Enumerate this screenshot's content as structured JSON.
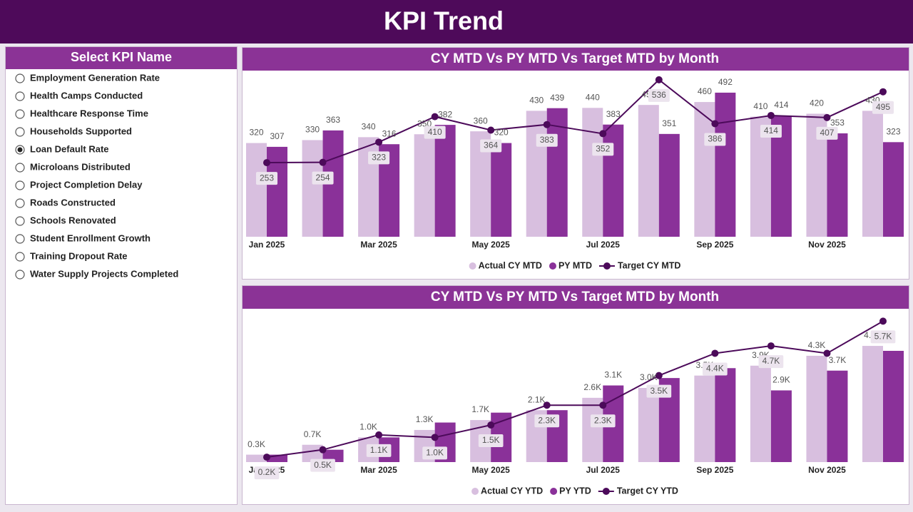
{
  "header": {
    "title": "KPI Trend"
  },
  "slicer": {
    "title": "Select KPI Name",
    "items": [
      "Employment Generation Rate",
      "Health Camps Conducted",
      "Healthcare Response Time",
      "Households Supported",
      "Loan Default Rate",
      "Microloans Distributed",
      "Project Completion Delay",
      "Roads Constructed",
      "Schools Renovated",
      "Student Enrollment Growth",
      "Training Dropout Rate",
      "Water Supply Projects Completed"
    ],
    "selected_index": 4
  },
  "chart_data": [
    {
      "type": "bar",
      "title": "CY MTD Vs PY MTD Vs Target MTD by Month",
      "categories": [
        "Jan 2025",
        null,
        "Mar 2025",
        null,
        "May 2025",
        null,
        "Jul 2025",
        null,
        "Sep 2025",
        null,
        "Nov 2025",
        null
      ],
      "series": [
        {
          "name": "Actual CY MTD",
          "type": "bar",
          "color": "#d8bfdf",
          "values": [
            320,
            330,
            340,
            350,
            360,
            430,
            440,
            450,
            460,
            410,
            420,
            430
          ]
        },
        {
          "name": "PY MTD",
          "type": "bar",
          "color": "#8a3199",
          "values": [
            307,
            363,
            316,
            382,
            320,
            439,
            383,
            351,
            492,
            414,
            353,
            323
          ]
        },
        {
          "name": "Target CY MTD",
          "type": "line",
          "color": "#4c0a5a",
          "values": [
            253,
            254,
            323,
            410,
            364,
            383,
            352,
            536,
            386,
            414,
            407,
            495
          ]
        }
      ],
      "ylim": [
        0,
        560
      ]
    },
    {
      "type": "bar",
      "title": "CY MTD Vs PY MTD Vs Target MTD by Month",
      "categories": [
        "Jan 2025",
        null,
        "Mar 2025",
        null,
        "May 2025",
        null,
        "Jul 2025",
        null,
        "Sep 2025",
        null,
        "Nov 2025",
        null
      ],
      "series": [
        {
          "name": "Actual CY YTD",
          "type": "bar",
          "color": "#d8bfdf",
          "values": [
            0.3,
            0.7,
            1.0,
            1.3,
            1.7,
            2.1,
            2.6,
            3.0,
            3.5,
            3.9,
            4.3,
            4.7
          ],
          "value_labels": [
            "0.3K",
            "0.7K",
            "1.0K",
            "1.3K",
            "1.7K",
            "2.1K",
            "2.6K",
            "3.0K",
            "3.5K",
            "3.9K",
            "4.3K",
            "4.7K"
          ]
        },
        {
          "name": "PY YTD",
          "type": "bar",
          "color": "#8a3199",
          "values": [
            0.3,
            0.5,
            1.0,
            1.6,
            2.0,
            2.1,
            3.1,
            3.4,
            3.8,
            2.9,
            3.7,
            4.5
          ],
          "value_labels": [
            null,
            null,
            null,
            null,
            null,
            null,
            "3.1K",
            null,
            null,
            "2.9K",
            "3.7K",
            null
          ]
        },
        {
          "name": "Target CY YTD",
          "type": "line",
          "color": "#4c0a5a",
          "values": [
            0.2,
            0.5,
            1.1,
            1.0,
            1.5,
            2.3,
            2.3,
            3.5,
            4.4,
            4.7,
            4.4,
            5.7
          ],
          "value_labels": [
            "0.2K",
            "0.5K",
            "1.1K",
            "1.0K",
            "1.5K",
            "2.3K",
            "2.3K",
            "3.5K",
            "4.4K",
            "4.7K",
            null,
            "5.7K"
          ]
        }
      ],
      "ylim": [
        0,
        6
      ]
    }
  ]
}
